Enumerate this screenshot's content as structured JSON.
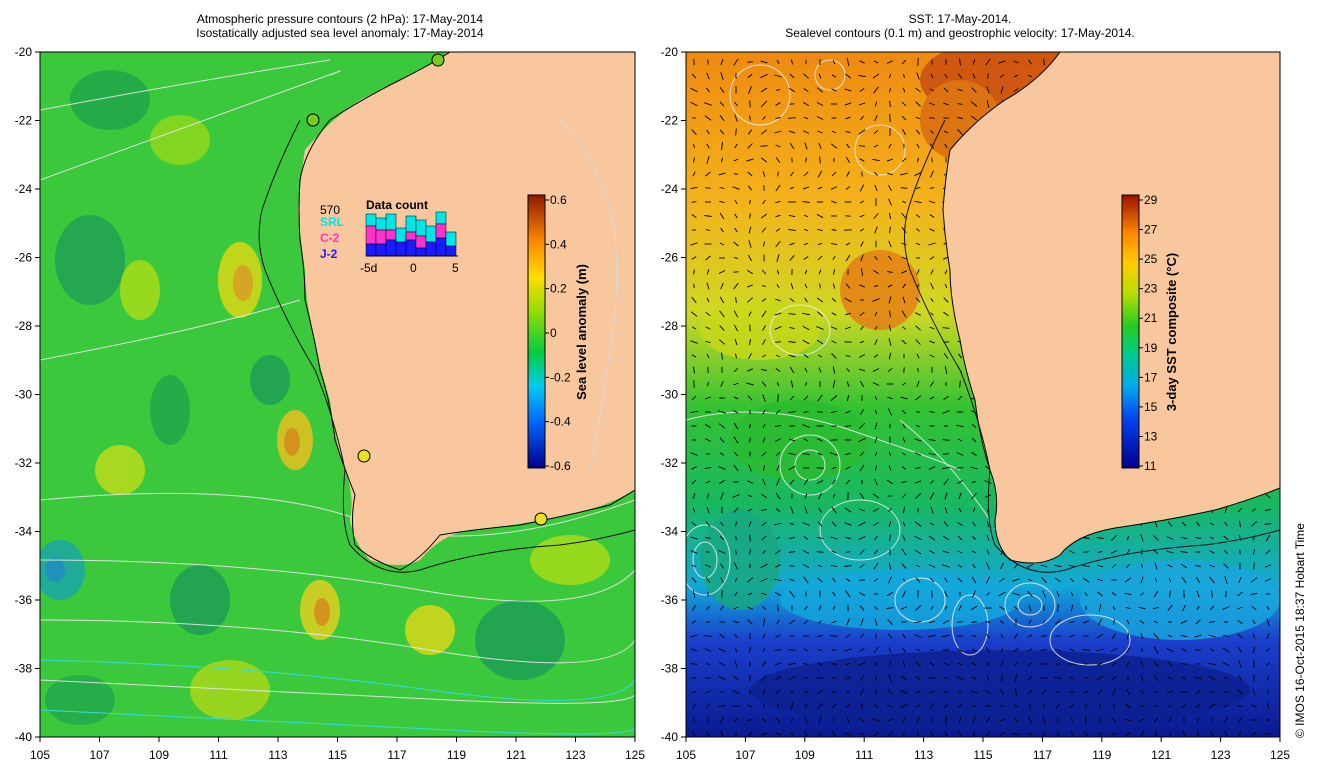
{
  "left_panel": {
    "title_line1": "Atmospheric pressure contours (2 hPa): 17-May-2014",
    "title_line2": "Isostatically adjusted sea level anomaly: 17-May-2014",
    "x_ticks": [
      "105",
      "107",
      "109",
      "111",
      "113",
      "115",
      "117",
      "119",
      "121",
      "123",
      "125"
    ],
    "y_ticks": [
      "-20",
      "-22",
      "-24",
      "-26",
      "-28",
      "-30",
      "-32",
      "-34",
      "-36",
      "-38",
      "-40"
    ],
    "colorbar": {
      "label": "Sea level anomaly (m)",
      "ticks": [
        "0.6",
        "0.4",
        "0.2",
        "0",
        "-0.2",
        "-0.4",
        "-0.6"
      ],
      "range": [
        -0.6,
        0.6
      ]
    },
    "data_count": {
      "title": "Data count",
      "total": "570",
      "sources": [
        {
          "label": "SRL",
          "color": "#00e5e5"
        },
        {
          "label": "C-2",
          "color": "#ff33cc"
        },
        {
          "label": "J-2",
          "color": "#1a1aff"
        }
      ],
      "x_ticks": [
        "-5d",
        "0",
        "5"
      ]
    }
  },
  "right_panel": {
    "title_line1": "SST: 17-May-2014.",
    "title_line2": "Sealevel contours (0.1 m) and geostrophic velocity: 17-May-2014.",
    "x_ticks": [
      "105",
      "107",
      "109",
      "111",
      "113",
      "115",
      "117",
      "119",
      "121",
      "123",
      "125"
    ],
    "y_ticks": [
      "-20",
      "-22",
      "-24",
      "-26",
      "-28",
      "-30",
      "-32",
      "-34",
      "-36",
      "-38",
      "-40"
    ],
    "colorbar": {
      "label": "3-day SST composite (°C)",
      "ticks": [
        "29",
        "27",
        "25",
        "23",
        "21",
        "19",
        "17",
        "15",
        "13",
        "11"
      ],
      "range": [
        11,
        29
      ]
    }
  },
  "credit": "© IMOS 16-Oct-2015 18:37 Hobart Time",
  "colors": {
    "land": "#f9c79e",
    "anomaly_low": "#00008b",
    "anomaly_zero": "#22bb22",
    "anomaly_high": "#8b1a00"
  }
}
